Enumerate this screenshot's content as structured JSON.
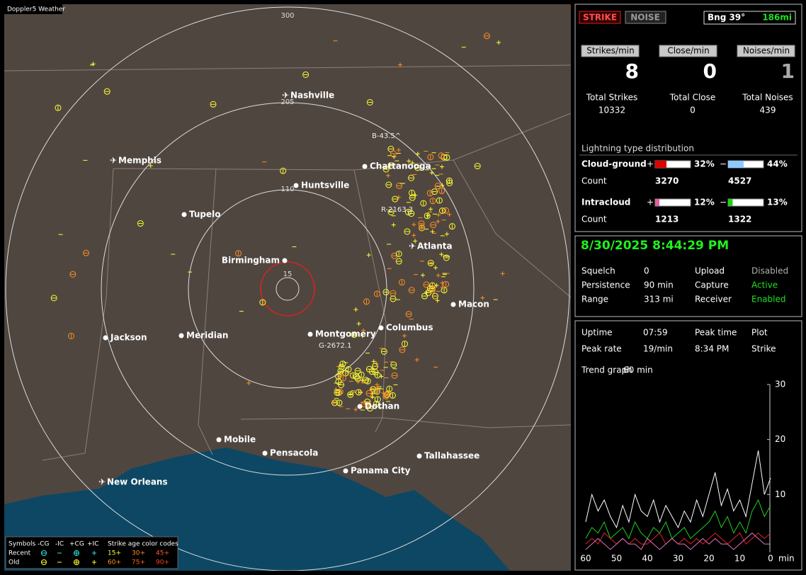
{
  "app_title": "Doppler5 Weather",
  "map": {
    "ring_labels": [
      "300",
      "205",
      "110",
      "15"
    ],
    "cities": [
      "Nashville",
      "Memphis",
      "Chattanooga",
      "Huntsville",
      "Tupelo",
      "Birmingham",
      "Atlanta",
      "Macon",
      "Columbus",
      "Montgomery",
      "Jackson",
      "Meridian",
      "Dothan",
      "Mobile",
      "Pensacola",
      "Tallahassee",
      "Panama City",
      "New Orleans"
    ],
    "tags": [
      "B-43.5^",
      "R-2163.3",
      "G-2672.1"
    ]
  },
  "legend": {
    "header": [
      "Symbols",
      "-CG",
      "-IC",
      "+CG",
      "+IC",
      "Strike age color codes"
    ],
    "rows": [
      {
        "label": "Recent",
        "ages": [
          "15+",
          "30+",
          "45+"
        ]
      },
      {
        "label": "Old",
        "ages": [
          "60+",
          "75+",
          "90+"
        ]
      }
    ]
  },
  "controls": {
    "strike": "STRIKE",
    "noise": "NOISE",
    "bearing": "Bng 39°",
    "distance": "186mi"
  },
  "rates": [
    {
      "label": "Strikes/min",
      "value": 8,
      "total_label": "Total Strikes",
      "total": 10332
    },
    {
      "label": "Close/min",
      "value": 0,
      "total_label": "Total Close",
      "total": 0
    },
    {
      "label": "Noises/min",
      "value": 1,
      "total_label": "Total Noises",
      "total": 439
    }
  ],
  "distribution": {
    "title": "Lightning type distribution",
    "rows": [
      {
        "name": "Cloud-ground",
        "pos_sign": "+",
        "neg_sign": "−",
        "pos": {
          "value": 32,
          "label": "32%"
        },
        "neg": {
          "value": 44,
          "label": "44%"
        },
        "pos_color": "#e00000",
        "neg_color": "#8fc8ff",
        "count_label": "Count",
        "pos_count": 3270,
        "neg_count": 4527
      },
      {
        "name": "Intracloud",
        "pos_sign": "+",
        "neg_sign": "−",
        "pos": {
          "value": 12,
          "label": "12%"
        },
        "neg": {
          "value": 13,
          "label": "13%"
        },
        "pos_color": "#e060a0",
        "neg_color": "#20d020",
        "count_label": "Count",
        "pos_count": 1213,
        "neg_count": 1322
      }
    ]
  },
  "datetime": "8/30/2025 8:44:29 PM",
  "status": [
    {
      "cells": [
        "Squelch",
        0,
        "Upload",
        "Disabled"
      ],
      "color": "#b0b0b0"
    },
    {
      "cells": [
        "Persistence",
        "90 min",
        "Capture",
        "Active"
      ],
      "color": "#20e020"
    },
    {
      "cells": [
        "Range",
        "313 mi",
        "Receiver",
        "Enabled"
      ],
      "color": "#20e020"
    }
  ],
  "stats": [
    [
      "Uptime",
      "07:59",
      "Peak time",
      "Plot"
    ],
    [
      "Peak rate",
      "19/min",
      "8:34 PM",
      "Strike"
    ],
    [
      "Trend graph",
      "60 min"
    ]
  ],
  "trend": {
    "type": "line",
    "x": [
      60,
      58,
      56,
      54,
      52,
      50,
      48,
      46,
      44,
      42,
      40,
      38,
      36,
      34,
      32,
      30,
      28,
      26,
      24,
      22,
      20,
      18,
      16,
      14,
      12,
      10,
      8,
      6,
      4,
      2,
      0
    ],
    "series": [
      {
        "color": "#ffffff",
        "values": [
          5,
          10,
          7,
          9,
          6,
          4,
          8,
          5,
          10,
          7,
          6,
          9,
          5,
          8,
          6,
          4,
          7,
          5,
          9,
          6,
          10,
          14,
          8,
          11,
          7,
          9,
          6,
          12,
          18,
          10,
          13
        ]
      },
      {
        "color": "#20d020",
        "values": [
          2,
          4,
          3,
          5,
          2,
          3,
          4,
          2,
          5,
          3,
          2,
          4,
          3,
          5,
          2,
          3,
          4,
          2,
          3,
          4,
          5,
          7,
          4,
          6,
          3,
          5,
          3,
          7,
          9,
          6,
          8
        ]
      },
      {
        "color": "#e02020",
        "values": [
          1,
          2,
          1,
          3,
          2,
          1,
          2,
          1,
          2,
          1,
          1,
          2,
          3,
          1,
          2,
          1,
          2,
          1,
          2,
          1,
          2,
          3,
          2,
          1,
          2,
          3,
          1,
          2,
          3,
          2,
          3
        ]
      },
      {
        "color": "#e070c0",
        "values": [
          0,
          1,
          2,
          1,
          0,
          1,
          2,
          1,
          1,
          0,
          2,
          1,
          0,
          1,
          2,
          1,
          1,
          0,
          1,
          2,
          1,
          2,
          1,
          1,
          0,
          1,
          2,
          3,
          2,
          1,
          1
        ]
      }
    ],
    "xlim": [
      60,
      0
    ],
    "ylim": [
      0,
      30
    ],
    "xticks": [
      60,
      50,
      40,
      30,
      20,
      10,
      0
    ],
    "yticks": [
      10,
      20,
      30
    ],
    "x_unit": "min"
  }
}
